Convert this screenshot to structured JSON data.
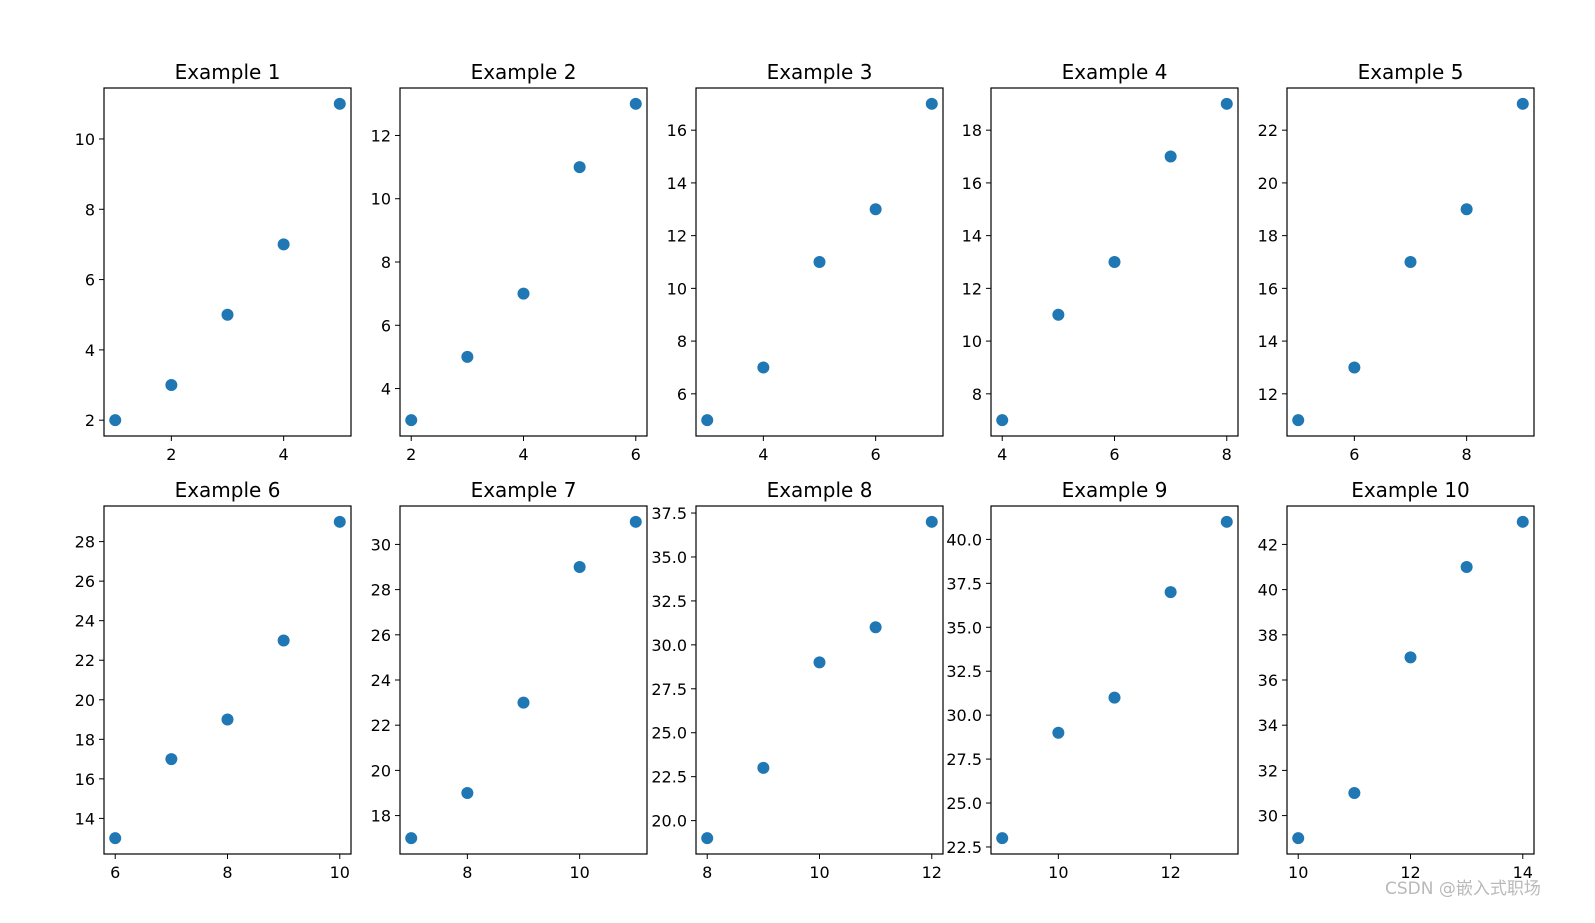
{
  "colors": {
    "marker": "#1f77b4",
    "axes": "#000000",
    "background": "#ffffff"
  },
  "watermark": "CSDN @嵌入式职场",
  "chart_data": [
    {
      "type": "scatter",
      "title": "Example 1",
      "x": [
        1,
        2,
        3,
        4,
        5
      ],
      "y": [
        2,
        3,
        5,
        7,
        11
      ],
      "xlim": [
        0.8,
        5.2
      ],
      "ylim": [
        1.55,
        11.45
      ],
      "xticks": [
        2,
        4
      ],
      "xticklabels": [
        "2",
        "4"
      ],
      "yticks": [
        2,
        4,
        6,
        8,
        10
      ],
      "yticklabels": [
        "2",
        "4",
        "6",
        "8",
        "10"
      ]
    },
    {
      "type": "scatter",
      "title": "Example 2",
      "x": [
        2,
        3,
        4,
        5,
        6
      ],
      "y": [
        3,
        5,
        7,
        11,
        13
      ],
      "xlim": [
        1.8,
        6.2
      ],
      "ylim": [
        2.5,
        13.5
      ],
      "xticks": [
        2,
        4,
        6
      ],
      "xticklabels": [
        "2",
        "4",
        "6"
      ],
      "yticks": [
        4,
        6,
        8,
        10,
        12
      ],
      "yticklabels": [
        "4",
        "6",
        "8",
        "10",
        "12"
      ]
    },
    {
      "type": "scatter",
      "title": "Example 3",
      "x": [
        3,
        4,
        5,
        6,
        7
      ],
      "y": [
        5,
        7,
        11,
        13,
        17
      ],
      "xlim": [
        2.8,
        7.2
      ],
      "ylim": [
        4.4,
        17.6
      ],
      "xticks": [
        4,
        6
      ],
      "xticklabels": [
        "4",
        "6"
      ],
      "yticks": [
        6,
        8,
        10,
        12,
        14,
        16
      ],
      "yticklabels": [
        "6",
        "8",
        "10",
        "12",
        "14",
        "16"
      ]
    },
    {
      "type": "scatter",
      "title": "Example 4",
      "x": [
        4,
        5,
        6,
        7,
        8
      ],
      "y": [
        7,
        11,
        13,
        17,
        19
      ],
      "xlim": [
        3.8,
        8.2
      ],
      "ylim": [
        6.4,
        19.6
      ],
      "xticks": [
        4,
        6,
        8
      ],
      "xticklabels": [
        "4",
        "6",
        "8"
      ],
      "yticks": [
        8,
        10,
        12,
        14,
        16,
        18
      ],
      "yticklabels": [
        "8",
        "10",
        "12",
        "14",
        "16",
        "18"
      ]
    },
    {
      "type": "scatter",
      "title": "Example 5",
      "x": [
        5,
        6,
        7,
        8,
        9
      ],
      "y": [
        11,
        13,
        17,
        19,
        23
      ],
      "xlim": [
        4.8,
        9.2
      ],
      "ylim": [
        10.4,
        23.6
      ],
      "xticks": [
        6,
        8
      ],
      "xticklabels": [
        "6",
        "8"
      ],
      "yticks": [
        12,
        14,
        16,
        18,
        20,
        22
      ],
      "yticklabels": [
        "12",
        "14",
        "16",
        "18",
        "20",
        "22"
      ]
    },
    {
      "type": "scatter",
      "title": "Example 6",
      "x": [
        6,
        7,
        8,
        9,
        10
      ],
      "y": [
        13,
        17,
        19,
        23,
        29
      ],
      "xlim": [
        5.8,
        10.2
      ],
      "ylim": [
        12.2,
        29.8
      ],
      "xticks": [
        6,
        8,
        10
      ],
      "xticklabels": [
        "6",
        "8",
        "10"
      ],
      "yticks": [
        14,
        16,
        18,
        20,
        22,
        24,
        26,
        28
      ],
      "yticklabels": [
        "14",
        "16",
        "18",
        "20",
        "22",
        "24",
        "26",
        "28"
      ]
    },
    {
      "type": "scatter",
      "title": "Example 7",
      "x": [
        7,
        8,
        9,
        10,
        11
      ],
      "y": [
        17,
        19,
        23,
        29,
        31
      ],
      "xlim": [
        6.8,
        11.2
      ],
      "ylim": [
        16.3,
        31.7
      ],
      "xticks": [
        8,
        10
      ],
      "xticklabels": [
        "8",
        "10"
      ],
      "yticks": [
        18,
        20,
        22,
        24,
        26,
        28,
        30
      ],
      "yticklabels": [
        "18",
        "20",
        "22",
        "24",
        "26",
        "28",
        "30"
      ]
    },
    {
      "type": "scatter",
      "title": "Example 8",
      "x": [
        8,
        9,
        10,
        11,
        12
      ],
      "y": [
        19,
        23,
        29,
        31,
        37
      ],
      "xlim": [
        7.8,
        12.2
      ],
      "ylim": [
        18.1,
        37.9
      ],
      "xticks": [
        8,
        10,
        12
      ],
      "xticklabels": [
        "8",
        "10",
        "12"
      ],
      "yticks": [
        20,
        22.5,
        25,
        27.5,
        30,
        32.5,
        35,
        37.5
      ],
      "yticklabels": [
        "20.0",
        "22.5",
        "25.0",
        "27.5",
        "30.0",
        "32.5",
        "35.0",
        "37.5"
      ]
    },
    {
      "type": "scatter",
      "title": "Example 9",
      "x": [
        9,
        10,
        11,
        12,
        13
      ],
      "y": [
        23,
        29,
        31,
        37,
        41
      ],
      "xlim": [
        8.8,
        13.2
      ],
      "ylim": [
        22.1,
        41.9
      ],
      "xticks": [
        10,
        12
      ],
      "xticklabels": [
        "10",
        "12"
      ],
      "yticks": [
        22.5,
        25,
        27.5,
        30,
        32.5,
        35,
        37.5,
        40
      ],
      "yticklabels": [
        "22.5",
        "25.0",
        "27.5",
        "30.0",
        "32.5",
        "35.0",
        "37.5",
        "40.0"
      ]
    },
    {
      "type": "scatter",
      "title": "Example 10",
      "x": [
        10,
        11,
        12,
        13,
        14
      ],
      "y": [
        29,
        31,
        37,
        41,
        43
      ],
      "xlim": [
        9.8,
        14.2
      ],
      "ylim": [
        28.3,
        43.7
      ],
      "xticks": [
        10,
        12,
        14
      ],
      "xticklabels": [
        "10",
        "12",
        "14"
      ],
      "yticks": [
        30,
        32,
        34,
        36,
        38,
        40,
        42
      ],
      "yticklabels": [
        "30",
        "32",
        "34",
        "36",
        "38",
        "40",
        "42"
      ]
    }
  ]
}
